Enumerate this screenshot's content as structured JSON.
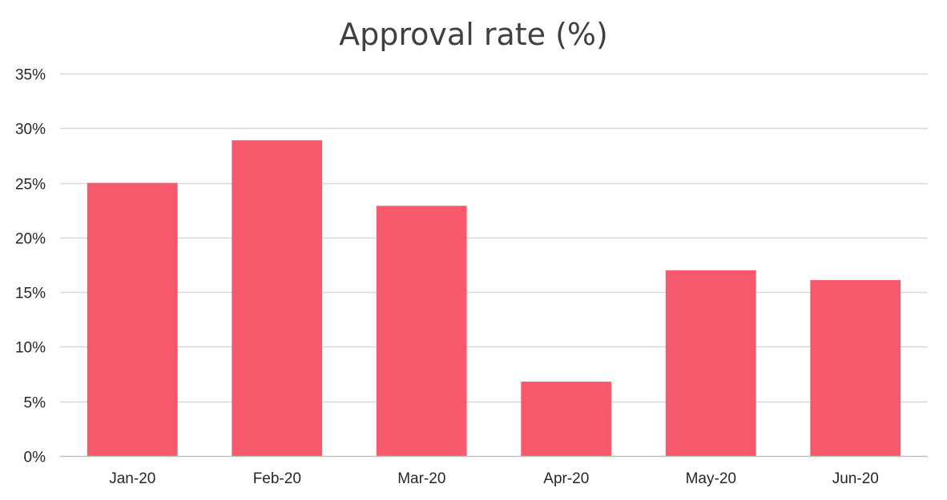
{
  "chart_data": {
    "type": "bar",
    "title": "Approval rate (%)",
    "xlabel": "",
    "ylabel": "",
    "categories": [
      "Jan-20",
      "Feb-20",
      "Mar-20",
      "Apr-20",
      "May-20",
      "Jun-20"
    ],
    "series": [
      {
        "values": [
          25.0,
          28.9,
          22.9,
          6.8,
          17.0,
          16.1
        ],
        "color": "#f5596b"
      }
    ],
    "ylim": [
      0,
      35
    ],
    "yticks": [
      0,
      5,
      10,
      15,
      20,
      25,
      30,
      35
    ],
    "ytick_labels": [
      "0%",
      "5%",
      "10%",
      "15%",
      "20%",
      "25%",
      "30%",
      "35%"
    ],
    "grid": true,
    "legend": "none",
    "gridline_color": "#d9d9d9",
    "axis_color": "#bfbfbf"
  }
}
